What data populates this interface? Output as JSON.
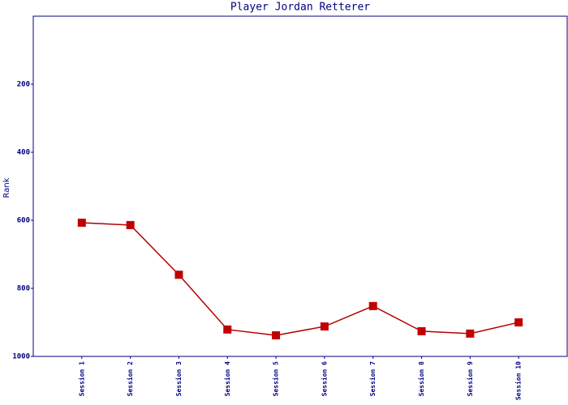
{
  "chart_data": {
    "type": "line",
    "title": "Player Jordan Retterer",
    "y_label": "Rank",
    "categories": [
      "Session 1",
      "Session 2",
      "Session 3",
      "Session 4",
      "Session 5",
      "Session 6",
      "Session 7",
      "Session 8",
      "Session 9",
      "Session 10"
    ],
    "series": [
      {
        "name": "Rank",
        "color": "#b30000",
        "marker_color": "#c00000",
        "values": [
          607,
          614,
          760,
          921,
          938,
          912,
          852,
          926,
          933,
          900
        ]
      }
    ],
    "ylim": [
      0,
      1000
    ],
    "y_inverted": true,
    "yticks": [
      200,
      400,
      600,
      800,
      1000
    ],
    "grid": false,
    "axis_color": "#000080"
  }
}
